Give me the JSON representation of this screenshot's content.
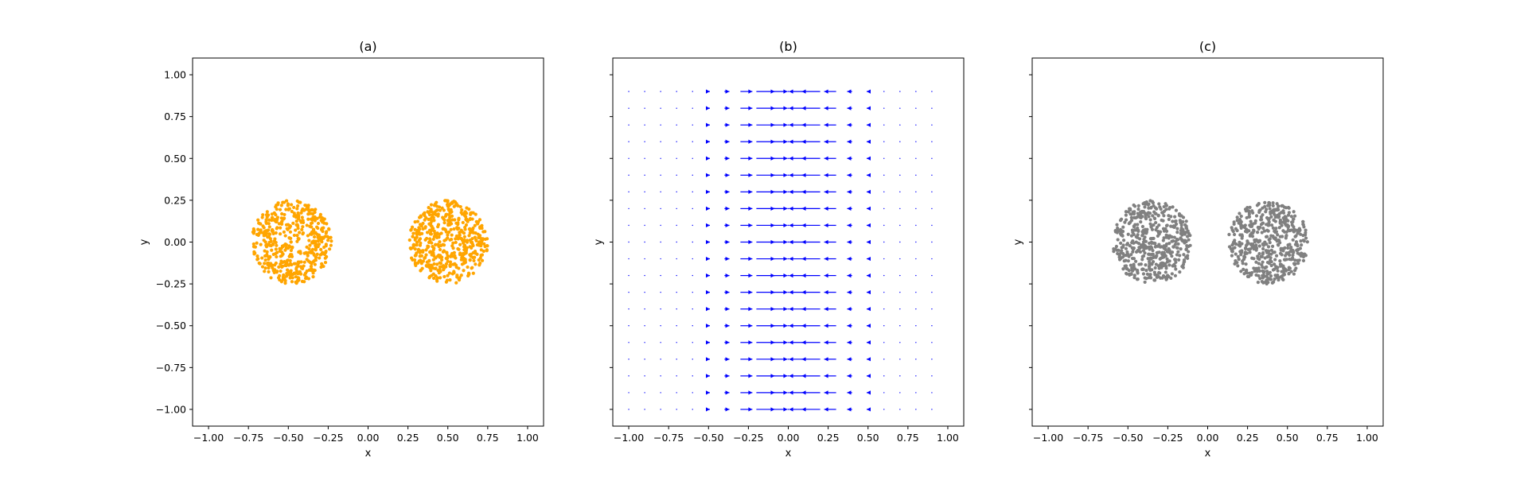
{
  "chart_data": [
    {
      "type": "scatter",
      "title": "(a)",
      "xlabel": "x",
      "ylabel": "y",
      "xlim": [
        -1.1,
        1.1
      ],
      "ylim": [
        -1.1,
        1.1
      ],
      "xticks": [
        "−1.00",
        "−0.75",
        "−0.50",
        "−0.25",
        "0.00",
        "0.25",
        "0.50",
        "0.75",
        "1.00"
      ],
      "yticks": [
        "−1.00",
        "−0.75",
        "−0.50",
        "−0.25",
        "0.00",
        "0.25",
        "0.50",
        "0.75",
        "1.00"
      ],
      "show_ytick_labels": true,
      "color": "#ffa500",
      "grid": false,
      "series": [
        {
          "shape": "disk",
          "center": [
            -0.48,
            0.0
          ],
          "radius": 0.25,
          "count": 500
        },
        {
          "shape": "disk",
          "center": [
            0.5,
            0.0
          ],
          "radius": 0.25,
          "count": 500
        }
      ]
    },
    {
      "type": "quiver",
      "title": "(b)",
      "xlabel": "x",
      "ylabel": "y",
      "xlim": [
        -1.1,
        1.1
      ],
      "ylim": [
        -1.1,
        1.1
      ],
      "xticks": [
        "−1.00",
        "−0.75",
        "−0.50",
        "−0.25",
        "0.00",
        "0.25",
        "0.50",
        "0.75",
        "1.00"
      ],
      "yticks": [
        "",
        "",
        "",
        "",
        "",
        "",
        "",
        "",
        ""
      ],
      "show_ytick_labels": false,
      "color": "#0000ff",
      "grid": false,
      "field": {
        "x_start": -1.0,
        "x_end": 0.9,
        "x_step": 0.1,
        "y_start": -1.0,
        "y_end": 0.9,
        "y_step": 0.1,
        "u_formula": "u = -0.2*x*exp(-x^2/0.06)",
        "v": 0
      }
    },
    {
      "type": "scatter",
      "title": "(c)",
      "xlabel": "x",
      "ylabel": "y",
      "xlim": [
        -1.1,
        1.1
      ],
      "ylim": [
        -1.1,
        1.1
      ],
      "xticks": [
        "−1.00",
        "−0.75",
        "−0.50",
        "−0.25",
        "0.00",
        "0.25",
        "0.50",
        "0.75",
        "1.00"
      ],
      "yticks": [
        "",
        "",
        "",
        "",
        "",
        "",
        "",
        "",
        ""
      ],
      "show_ytick_labels": false,
      "color": "#808080",
      "grid": false,
      "series": [
        {
          "shape": "disk",
          "center": [
            -0.35,
            0.0
          ],
          "radius": 0.25,
          "count": 500
        },
        {
          "shape": "disk",
          "center": [
            0.38,
            0.0
          ],
          "radius": 0.25,
          "count": 500
        }
      ]
    }
  ]
}
